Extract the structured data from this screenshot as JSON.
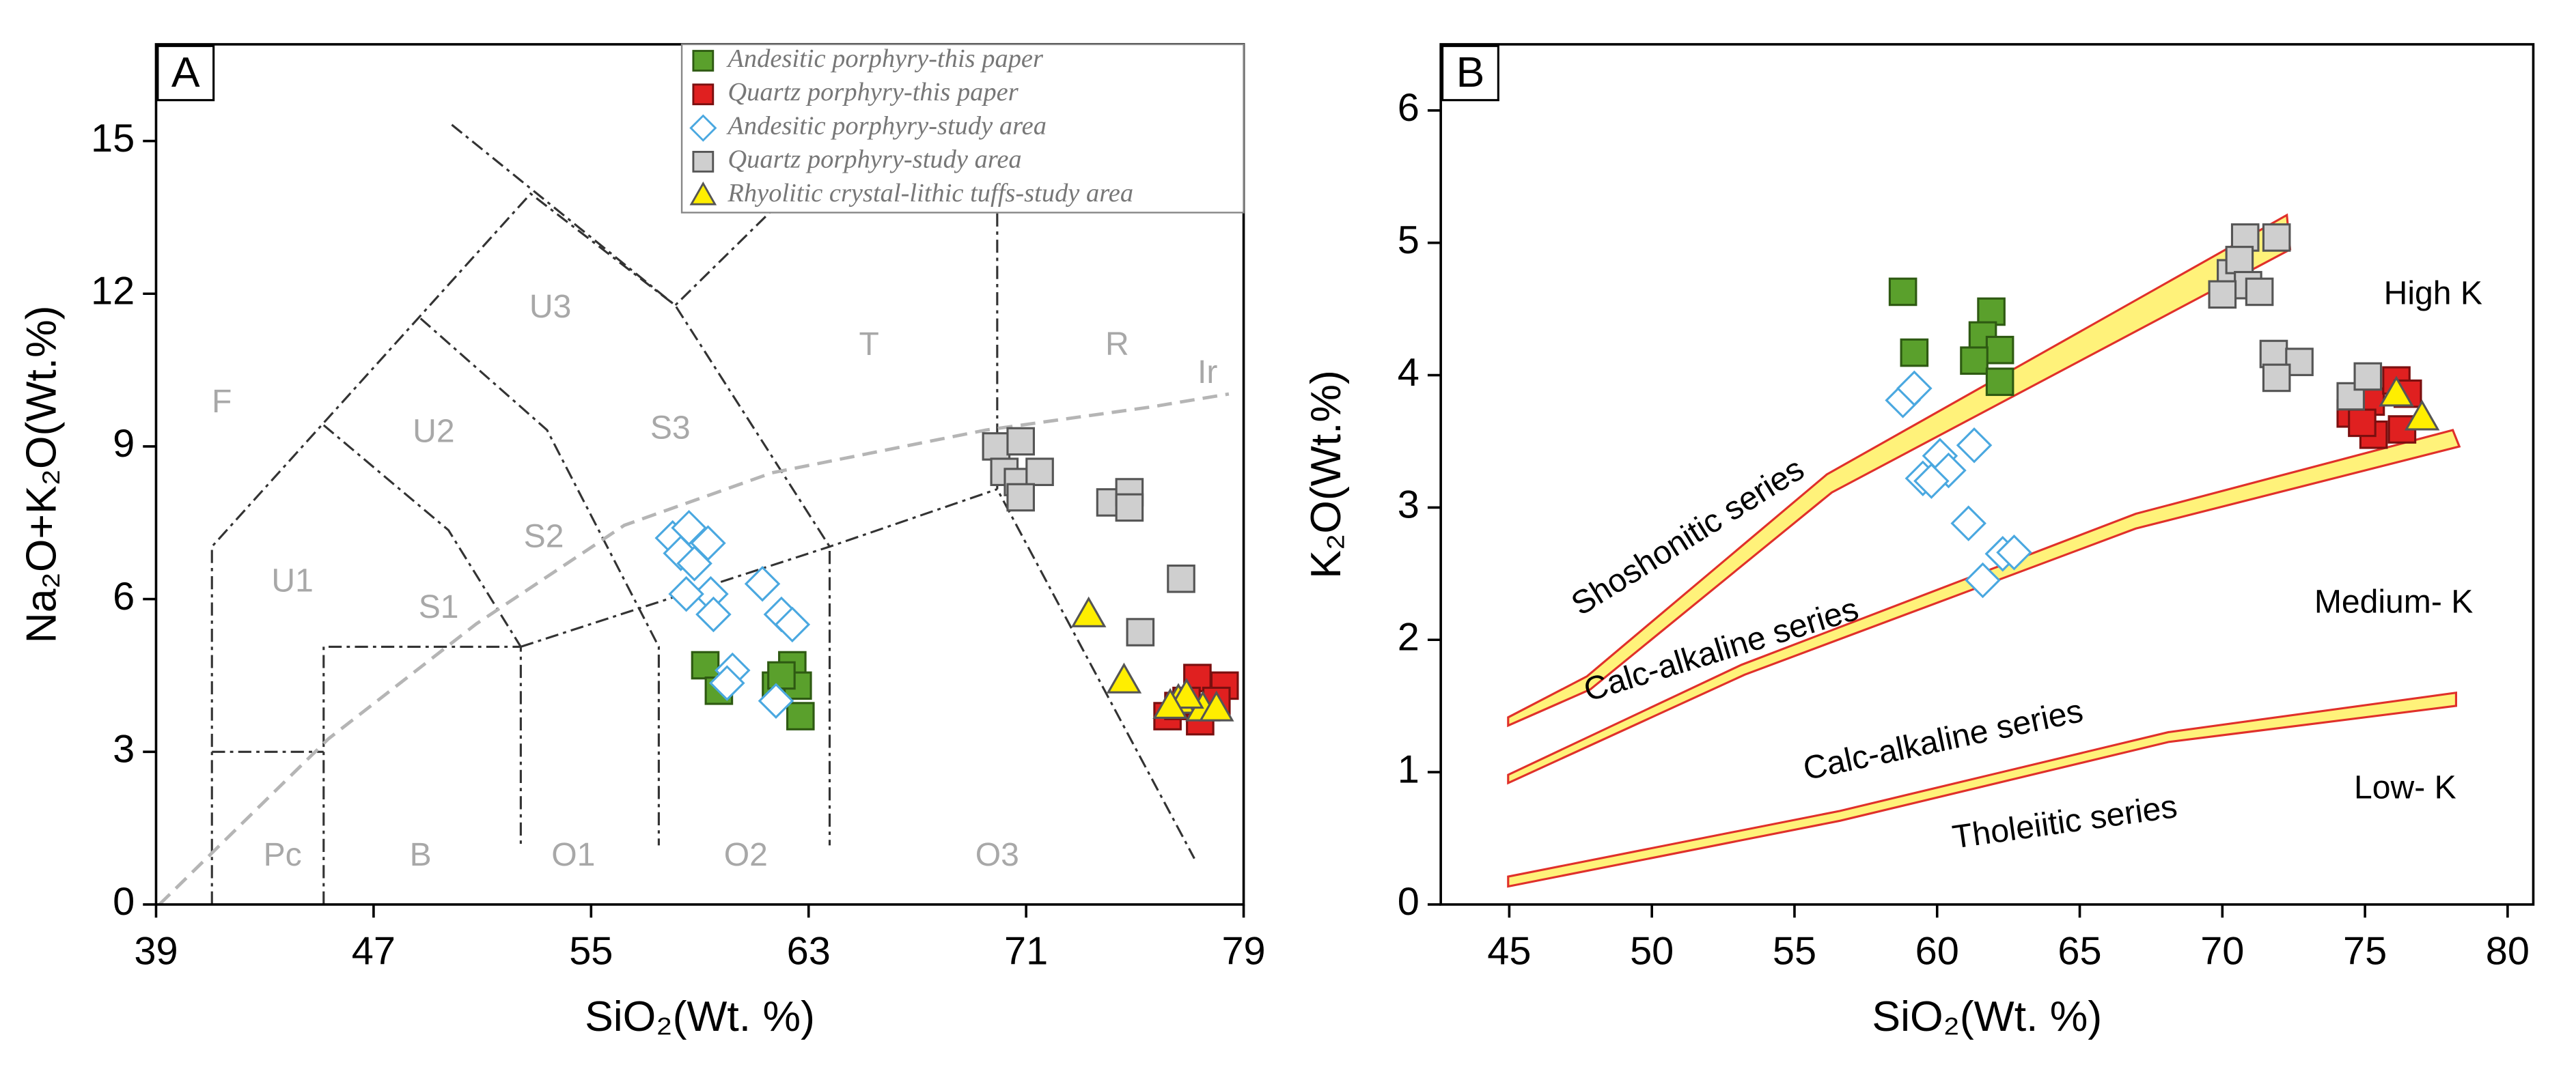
{
  "chart_data": [
    {
      "type": "scatter",
      "panel": "A",
      "xlabel": "SiO₂(Wt. %)",
      "ylabel": "Na₂O+K₂O(Wt.%)",
      "xlim": [
        39,
        79
      ],
      "ylim": [
        0,
        16.9
      ],
      "xticks": [
        39,
        47,
        55,
        63,
        71,
        79
      ],
      "yticks": [
        0,
        3,
        6,
        9,
        12,
        15
      ],
      "legend": "upper right",
      "annotations": [
        "F",
        "U1",
        "U2",
        "U3",
        "S1",
        "S2",
        "S3",
        "T",
        "R",
        "Ir",
        "Pc",
        "B",
        "O1",
        "O2",
        "O3"
      ],
      "series": [
        {
          "name": "Andesitic porphyry-this paper",
          "marker": "square",
          "color": "#5aa02c",
          "edgecolor": "#2e5a12",
          "x": [
            59.2,
            59.7,
            61.8,
            62.4,
            62.6,
            62.7,
            62.0
          ],
          "y": [
            4.7,
            4.2,
            4.3,
            4.7,
            4.3,
            3.7,
            4.5
          ]
        },
        {
          "name": "Quartz porphyry-this paper",
          "marker": "square",
          "color": "#e02020",
          "edgecolor": "#7a0f0f",
          "x": [
            77.3,
            78.3,
            76.2,
            76.6,
            77.4,
            78.0,
            76.9
          ],
          "y": [
            4.45,
            4.3,
            3.7,
            3.9,
            3.6,
            4.0,
            4.0
          ]
        },
        {
          "name": "Andesitic porphyry-study area",
          "marker": "diamond",
          "color": "#ffffff",
          "edgecolor": "#4aa8e0",
          "x": [
            58.0,
            58.6,
            59.3,
            58.3,
            58.8,
            59.4,
            59.5,
            58.5,
            61.3,
            62.0,
            62.4,
            60.2,
            60.0,
            61.8
          ],
          "y": [
            7.2,
            7.4,
            7.1,
            6.9,
            6.7,
            6.1,
            5.7,
            6.1,
            6.3,
            5.7,
            5.5,
            4.6,
            4.35,
            4.0
          ]
        },
        {
          "name": "Quartz porphyry-study area",
          "marker": "square",
          "color": "#cfcfcf",
          "edgecolor": "#555555",
          "x": [
            69.9,
            70.8,
            70.2,
            70.7,
            71.5,
            70.8,
            74.1,
            74.8,
            74.8,
            76.7,
            75.2
          ],
          "y": [
            9.0,
            9.1,
            8.5,
            8.3,
            8.5,
            8.0,
            7.9,
            8.1,
            7.8,
            6.4,
            5.35
          ]
        },
        {
          "name": "Rhyolitic crystal-lithic tuffs-study area",
          "marker": "triangle",
          "color": "#ffee00",
          "edgecolor": "#555555",
          "x": [
            73.3,
            74.6,
            76.6,
            77.5,
            78.0,
            76.9,
            76.3
          ],
          "y": [
            5.7,
            4.4,
            4.0,
            3.85,
            3.85,
            4.1,
            3.9
          ]
        }
      ]
    },
    {
      "type": "scatter",
      "panel": "B",
      "xlabel": "SiO₂(Wt. %)",
      "ylabel": "K₂O(Wt.%)",
      "xlim": [
        42.6,
        80.9
      ],
      "ylim": [
        0,
        6.5
      ],
      "xticks": [
        45,
        50,
        55,
        60,
        65,
        70,
        75,
        80
      ],
      "yticks": [
        0,
        1,
        2,
        3,
        4,
        5,
        6
      ],
      "annotations": [
        "Shoshonitic series",
        "Calc-alkaline series",
        "Calc-alkaline series",
        "Tholeiitic series",
        "High K",
        "Medium- K",
        "Low- K"
      ],
      "series": [
        {
          "marker": "square",
          "color": "#5aa02c",
          "edgecolor": "#2e5a12",
          "x": [
            58.8,
            59.2,
            61.9,
            61.6,
            62.2,
            61.3,
            62.2
          ],
          "y": [
            4.63,
            4.17,
            4.48,
            4.3,
            4.19,
            4.11,
            3.95
          ]
        },
        {
          "marker": "square",
          "color": "#e02020",
          "edgecolor": "#7a0f0f",
          "x": [
            74.5,
            75.2,
            76.1,
            76.5,
            75.3,
            76.3,
            74.9
          ],
          "y": [
            3.71,
            3.8,
            3.96,
            3.86,
            3.55,
            3.59,
            3.64
          ]
        },
        {
          "marker": "diamond",
          "color": "#ffffff",
          "edgecolor": "#4aa8e0",
          "x": [
            58.8,
            59.2,
            60.1,
            59.5,
            60.4,
            59.8,
            61.3,
            61.1,
            61.6,
            62.3,
            62.7
          ],
          "y": [
            3.81,
            3.9,
            3.39,
            3.22,
            3.28,
            3.2,
            3.47,
            2.88,
            2.45,
            2.65,
            2.66
          ]
        },
        {
          "marker": "square",
          "color": "#cfcfcf",
          "edgecolor": "#555555",
          "x": [
            70.8,
            71.9,
            70.3,
            70.6,
            70.9,
            71.3,
            70.0,
            71.8,
            72.7,
            71.9,
            74.5,
            75.1
          ],
          "y": [
            5.04,
            5.04,
            4.77,
            4.87,
            4.68,
            4.63,
            4.61,
            4.16,
            4.1,
            3.98,
            3.84,
            3.99
          ]
        },
        {
          "marker": "triangle",
          "color": "#ffee00",
          "edgecolor": "#555555",
          "x": [
            76.1,
            77.0
          ],
          "y": [
            3.86,
            3.68
          ]
        }
      ]
    }
  ]
}
